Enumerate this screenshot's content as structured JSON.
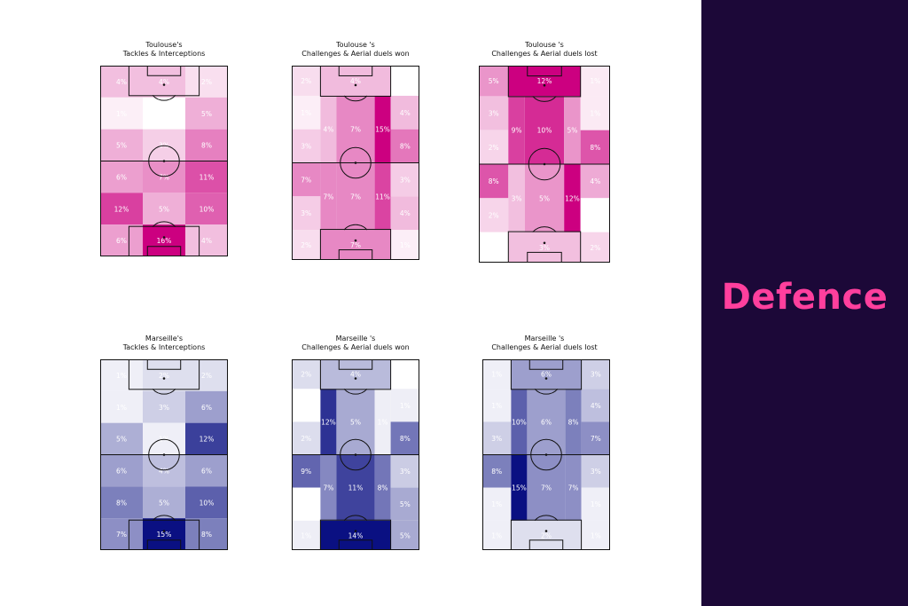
{
  "side_panel": {
    "title": "Defence",
    "title_color": "#ff3f9d",
    "background": "#1c0838"
  },
  "chart_data": [
    {
      "type": "heatmap",
      "team": "Toulouse",
      "palette": "pink",
      "title_line1": "Toulouse's",
      "title_line2": "Tackles & Interceptions",
      "zone_layout": "grid3",
      "rows": [
        [
          "4%",
          "4%",
          "2%"
        ],
        [
          "1%",
          "0%",
          "5%"
        ],
        [
          "5%",
          "3%",
          "8%"
        ],
        [
          "6%",
          "7%",
          "11%"
        ],
        [
          "12%",
          "5%",
          "10%"
        ],
        [
          "6%",
          "16%",
          "4%"
        ]
      ],
      "values": [
        4,
        4,
        2,
        1,
        0,
        5,
        5,
        3,
        8,
        6,
        7,
        11,
        12,
        5,
        10,
        6,
        16,
        4
      ]
    },
    {
      "type": "heatmap",
      "team": "Toulouse",
      "palette": "pink",
      "title_line1": "Toulouse 's",
      "title_line2": "Challenges & Aerial duels won",
      "zone_layout": "positional",
      "top_box": "4%",
      "top_wings": [
        "2%",
        "0%"
      ],
      "upper": [
        "1%",
        "3%",
        "4%",
        "7%",
        "15%",
        "4%",
        "3%",
        "8%"
      ],
      "lower": [
        "7%",
        "3%",
        "7%",
        "7%",
        "11%",
        "3%",
        "2%",
        "4%"
      ],
      "bottom_box": "7%",
      "bottom_wings": [
        "2%",
        "1%"
      ],
      "values": [
        4,
        2,
        0,
        1,
        3,
        4,
        7,
        15,
        4,
        3,
        8,
        7,
        3,
        7,
        7,
        11,
        3,
        2,
        4,
        7,
        2,
        1
      ]
    },
    {
      "type": "heatmap",
      "team": "Toulouse",
      "palette": "pink",
      "title_line1": "Toulouse 's",
      "title_line2": "Challenges & Aerial duels lost",
      "zone_layout": "positional",
      "top_box": "12%",
      "top_wings": [
        "5%",
        "1%"
      ],
      "upper": [
        "3%",
        "2%",
        "9%",
        "10%",
        "5%",
        "1%",
        "1%",
        "8%"
      ],
      "lower": [
        "8%",
        "2%",
        "3%",
        "5%",
        "12%",
        "4%",
        "0%",
        "0%"
      ],
      "bottom_box": "3%",
      "bottom_wings": [
        "0%",
        "2%"
      ],
      "values": [
        12,
        5,
        1,
        3,
        2,
        9,
        10,
        5,
        1,
        1,
        8,
        8,
        2,
        3,
        5,
        12,
        4,
        0,
        0,
        3,
        0,
        2
      ]
    },
    {
      "type": "heatmap",
      "team": "Marseille",
      "palette": "blue",
      "title_line1": "Marseille's",
      "title_line2": "Tackles & Interceptions",
      "zone_layout": "grid3",
      "rows": [
        [
          "1%",
          "2%",
          "2%"
        ],
        [
          "1%",
          "3%",
          "6%"
        ],
        [
          "5%",
          "1%",
          "12%"
        ],
        [
          "6%",
          "4%",
          "6%"
        ],
        [
          "8%",
          "5%",
          "10%"
        ],
        [
          "7%",
          "15%",
          "8%"
        ]
      ],
      "values": [
        1,
        2,
        2,
        1,
        3,
        6,
        5,
        1,
        12,
        6,
        4,
        6,
        8,
        5,
        10,
        7,
        15,
        8
      ]
    },
    {
      "type": "heatmap",
      "team": "Marseille",
      "palette": "blue",
      "title_line1": "Marseille 's",
      "title_line2": "Challenges & Aerial duels won",
      "zone_layout": "positional",
      "top_box": "4%",
      "top_wings": [
        "2%",
        "0%"
      ],
      "upper": [
        "0%",
        "2%",
        "12%",
        "5%",
        "1%",
        "1%",
        "1%",
        "8%"
      ],
      "lower": [
        "9%",
        "0%",
        "7%",
        "11%",
        "8%",
        "3%",
        "3%",
        "5%"
      ],
      "bottom_box": "14%",
      "bottom_wings": [
        "1%",
        "5%"
      ],
      "values": [
        4,
        2,
        0,
        0,
        2,
        12,
        5,
        1,
        1,
        1,
        8,
        9,
        0,
        7,
        11,
        8,
        3,
        3,
        5,
        14,
        1,
        5
      ]
    },
    {
      "type": "heatmap",
      "team": "Marseille",
      "palette": "blue",
      "title_line1": "Marseille 's",
      "title_line2": "Challenges & Aerial duels lost",
      "zone_layout": "positional",
      "top_box": "6%",
      "top_wings": [
        "1%",
        "3%"
      ],
      "upper": [
        "1%",
        "3%",
        "10%",
        "6%",
        "8%",
        "4%",
        "1%",
        "7%"
      ],
      "lower": [
        "8%",
        "1%",
        "15%",
        "7%",
        "7%",
        "3%",
        "3%",
        "1%"
      ],
      "bottom_box": "2%",
      "bottom_wings": [
        "1%",
        "1%"
      ],
      "values": [
        6,
        1,
        3,
        1,
        3,
        10,
        6,
        8,
        4,
        1,
        7,
        8,
        1,
        15,
        7,
        7,
        3,
        3,
        1,
        2,
        1,
        1
      ]
    }
  ]
}
